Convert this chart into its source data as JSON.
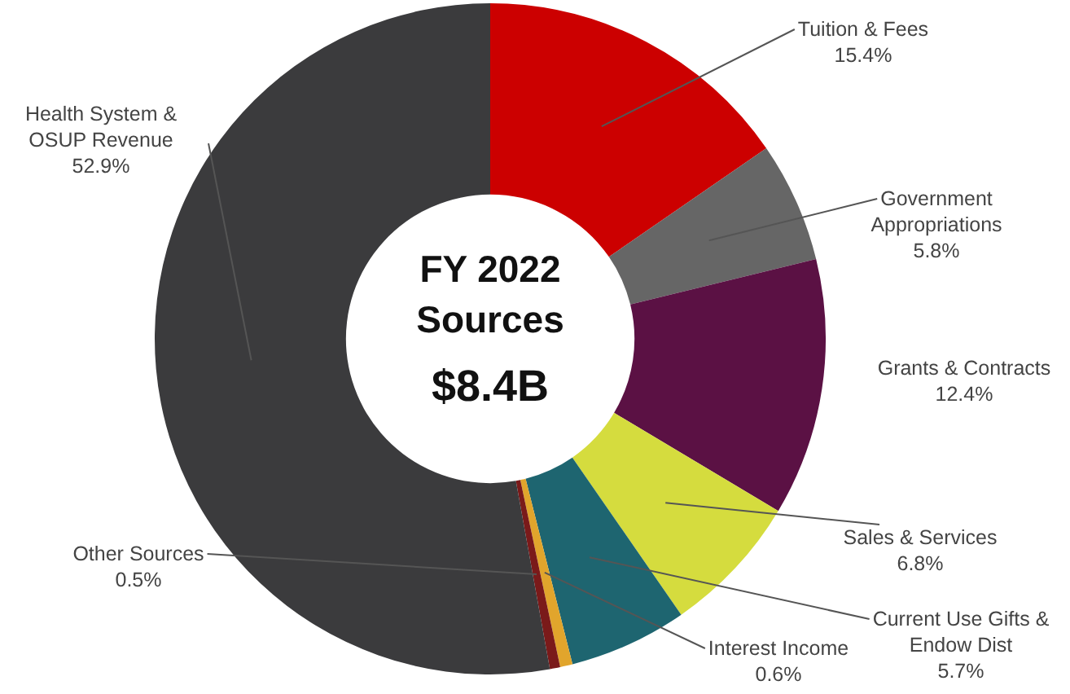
{
  "chart_data": {
    "type": "donut",
    "categories": [
      "Tuition & Fees",
      "Government Appropriations",
      "Grants & Contracts",
      "Sales & Services",
      "Current Use Gifts & Endow Dist",
      "Interest Income",
      "Other Sources",
      "Health System & OSUP Revenue"
    ],
    "values": [
      15.4,
      5.8,
      12.4,
      6.8,
      5.7,
      0.6,
      0.5,
      52.9
    ],
    "value_labels": [
      "15.4%",
      "5.8%",
      "12.4%",
      "6.8%",
      "5.7%",
      "0.6%",
      "0.5%",
      "52.9%"
    ],
    "colors": [
      "#cc0000",
      "#666666",
      "#5b1144",
      "#d5dc3e",
      "#1e6570",
      "#e1a52c",
      "#7a1a1a",
      "#3b3b3d"
    ],
    "annotations": [
      "FY 2022",
      "Sources",
      "$8.4B"
    ],
    "legend": false
  }
}
